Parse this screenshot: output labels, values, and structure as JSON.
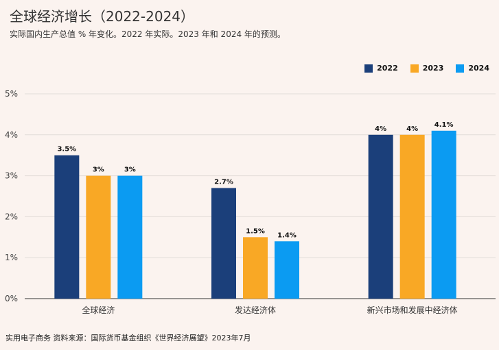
{
  "title": "全球经济增长（2022-2024）",
  "subtitle": "实际国内生产总值 % 年变化。2022 年实际。2023 年和 2024 年的预测。",
  "footer": "实用电子商务 资料来源：国际货币基金组织《世界经济展望》2023年7月",
  "colors": {
    "2022": "#1b3f7a",
    "2023": "#f9a825",
    "2024": "#0b9bf2"
  },
  "chart_data": {
    "type": "bar",
    "categories": [
      "全球经济",
      "发达经济体",
      "新兴市场和发展中经济体"
    ],
    "series": [
      {
        "name": "2022",
        "values": [
          3.5,
          2.7,
          4
        ],
        "labels": [
          "3.5%",
          "2.7%",
          "4%"
        ]
      },
      {
        "name": "2023",
        "values": [
          3,
          1.5,
          4
        ],
        "labels": [
          "3%",
          "1.5%",
          "4%"
        ]
      },
      {
        "name": "2024",
        "values": [
          3,
          1.4,
          4.1
        ],
        "labels": [
          "3%",
          "1.4%",
          "4.1%"
        ]
      }
    ],
    "yticks": [
      "0%",
      "1%",
      "2%",
      "3%",
      "4%",
      "5%"
    ],
    "ylim": [
      0,
      5
    ],
    "legend_position": "top-right",
    "grid": true
  }
}
